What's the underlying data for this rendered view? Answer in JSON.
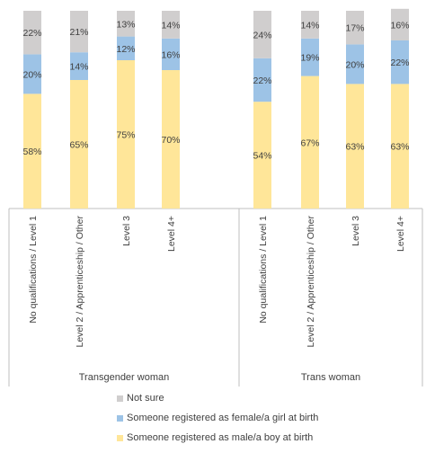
{
  "chart_data": {
    "type": "bar",
    "stacked": true,
    "ylim": [
      0,
      100
    ],
    "grid": false,
    "legend_position": "bottom",
    "groups": [
      {
        "label": "Transgender woman",
        "categories": [
          "No qualifications / Level 1",
          "Level 2 / Apprenticeship / Other",
          "Level 3",
          "Level 4+"
        ],
        "series": [
          {
            "name": "Someone registered as male/a boy at birth",
            "values": [
              58,
              65,
              75,
              70
            ]
          },
          {
            "name": "Someone registered as female/a girl at birth",
            "values": [
              20,
              14,
              12,
              16
            ]
          },
          {
            "name": "Not sure",
            "values": [
              22,
              21,
              13,
              14
            ]
          }
        ]
      },
      {
        "label": "Trans woman",
        "categories": [
          "No qualifications / Level 1",
          "Level 2 / Apprenticeship / Other",
          "Level 3",
          "Level 4+"
        ],
        "series": [
          {
            "name": "Someone registered as male/a boy at birth",
            "values": [
              54,
              67,
              63,
              63
            ]
          },
          {
            "name": "Someone registered as female/a girl at birth",
            "values": [
              22,
              19,
              20,
              22
            ]
          },
          {
            "name": "Not sure",
            "values": [
              24,
              14,
              17,
              16
            ]
          }
        ]
      }
    ],
    "colors": {
      "Someone registered as male/a boy at birth": "#FFE699",
      "Someone registered as female/a girl at birth": "#9DC3E6",
      "Not sure": "#D0CECE"
    },
    "legend_order": [
      "Not sure",
      "Someone registered as female/a girl at birth",
      "Someone registered as male/a boy at birth"
    ]
  }
}
